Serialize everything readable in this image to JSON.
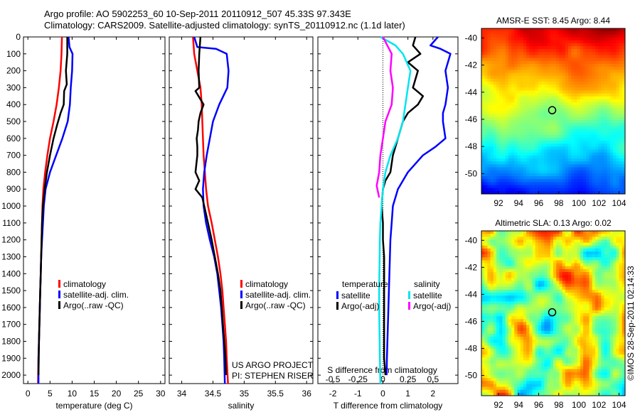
{
  "header": {
    "line1": "Argo profile: AO 5902253_60 10-Sep-2011 20110912_507 45.33S 97.343E",
    "line2": "Climatology: CARS2009. Satellite-adjusted climatology: synTS_20110912.nc (1.1d later)"
  },
  "credit": "US ARGO PROJECT",
  "pi": "PI: STEPHEN RISER",
  "timestamp": "©IMOS 28-Sep-2011 02:14:33",
  "colors": {
    "red": "#ff0000",
    "blue": "#0000ff",
    "black": "#000000",
    "cyan": "#00e5ee",
    "magenta": "#ff00ff"
  },
  "chart_data": [
    {
      "type": "line",
      "xlabel": "temperature (deg C)",
      "ylabel": "",
      "xlim": [
        -1,
        31
      ],
      "ylim": [
        2050,
        0
      ],
      "x_ticks": [
        "0",
        "5",
        "10",
        "15",
        "20",
        "25",
        "30"
      ],
      "y_ticks": [
        "0",
        "100",
        "200",
        "300",
        "400",
        "500",
        "600",
        "700",
        "800",
        "900",
        "1000",
        "1100",
        "1200",
        "1300",
        "1400",
        "1500",
        "1600",
        "1700",
        "1800",
        "1900",
        "2000"
      ],
      "legend": [
        "climatology",
        "satellite-adj. clim.",
        "Argo(..raw -QC)"
      ],
      "series": [
        {
          "name": "climatology",
          "color": "red",
          "points": [
            [
              7.7,
              0
            ],
            [
              7.6,
              100
            ],
            [
              7.4,
              200
            ],
            [
              7.0,
              300
            ],
            [
              6.5,
              400
            ],
            [
              5.8,
              500
            ],
            [
              5.0,
              600
            ],
            [
              4.4,
              700
            ],
            [
              3.9,
              800
            ],
            [
              3.5,
              900
            ],
            [
              3.3,
              1000
            ],
            [
              3.2,
              1100
            ],
            [
              3.1,
              1200
            ],
            [
              3.0,
              1300
            ],
            [
              2.9,
              1400
            ],
            [
              2.8,
              1500
            ],
            [
              2.7,
              1600
            ],
            [
              2.6,
              1700
            ],
            [
              2.5,
              1800
            ],
            [
              2.4,
              1900
            ],
            [
              2.3,
              2050
            ]
          ]
        },
        {
          "name": "satellite-adj. clim.",
          "color": "blue",
          "points": [
            [
              9.2,
              0
            ],
            [
              9.4,
              60
            ],
            [
              10.1,
              100
            ],
            [
              10.0,
              200
            ],
            [
              9.7,
              300
            ],
            [
              9.5,
              400
            ],
            [
              9.0,
              500
            ],
            [
              7.8,
              600
            ],
            [
              6.4,
              700
            ],
            [
              5.0,
              800
            ],
            [
              4.0,
              900
            ],
            [
              3.6,
              1000
            ],
            [
              3.4,
              1100
            ],
            [
              3.2,
              1200
            ],
            [
              3.0,
              1300
            ],
            [
              2.9,
              1400
            ],
            [
              2.8,
              1500
            ],
            [
              2.7,
              1600
            ],
            [
              2.6,
              1700
            ],
            [
              2.5,
              1800
            ],
            [
              2.4,
              1900
            ],
            [
              2.4,
              2050
            ]
          ]
        },
        {
          "name": "Argo(..raw -QC)",
          "color": "black",
          "points": [
            [
              8.9,
              0
            ],
            [
              8.9,
              100
            ],
            [
              8.6,
              200
            ],
            [
              8.8,
              280
            ],
            [
              8.2,
              320
            ],
            [
              8.1,
              400
            ],
            [
              7.4,
              450
            ],
            [
              6.6,
              520
            ],
            [
              5.8,
              600
            ],
            [
              5.0,
              700
            ],
            [
              4.3,
              800
            ],
            [
              3.8,
              900
            ],
            [
              3.4,
              1000
            ],
            [
              3.2,
              1100
            ],
            [
              3.1,
              1200
            ],
            [
              3.0,
              1300
            ],
            [
              2.9,
              1400
            ],
            [
              2.8,
              1500
            ],
            [
              2.7,
              1600
            ],
            [
              2.6,
              1700
            ],
            [
              2.5,
              1800
            ],
            [
              2.45,
              1900
            ],
            [
              2.4,
              2000
            ]
          ]
        }
      ]
    },
    {
      "type": "line",
      "xlabel": "salinity",
      "ylabel": "",
      "xlim": [
        33.8,
        36.1
      ],
      "ylim": [
        2050,
        0
      ],
      "x_ticks": [
        "34",
        "34.5",
        "35",
        "35.5",
        "36"
      ],
      "legend": [
        "climatology",
        "satellite-adj. clim.",
        "Argo(..raw -QC)"
      ],
      "series": [
        {
          "name": "climatology",
          "color": "red",
          "points": [
            [
              34.18,
              0
            ],
            [
              34.2,
              100
            ],
            [
              34.25,
              200
            ],
            [
              34.3,
              300
            ],
            [
              34.32,
              400
            ],
            [
              34.33,
              500
            ],
            [
              34.34,
              600
            ],
            [
              34.35,
              700
            ],
            [
              34.37,
              800
            ],
            [
              34.39,
              900
            ],
            [
              34.42,
              1000
            ],
            [
              34.48,
              1100
            ],
            [
              34.53,
              1200
            ],
            [
              34.58,
              1300
            ],
            [
              34.62,
              1400
            ],
            [
              34.65,
              1500
            ],
            [
              34.67,
              1600
            ],
            [
              34.69,
              1700
            ],
            [
              34.71,
              1800
            ],
            [
              34.72,
              1900
            ],
            [
              34.74,
              2050
            ]
          ]
        },
        {
          "name": "satellite-adj. clim.",
          "color": "blue",
          "points": [
            [
              34.2,
              0
            ],
            [
              34.25,
              60
            ],
            [
              34.55,
              70
            ],
            [
              34.72,
              100
            ],
            [
              34.75,
              200
            ],
            [
              34.73,
              300
            ],
            [
              34.6,
              400
            ],
            [
              34.5,
              500
            ],
            [
              34.45,
              600
            ],
            [
              34.4,
              700
            ],
            [
              34.36,
              800
            ],
            [
              34.34,
              900
            ],
            [
              34.35,
              1000
            ],
            [
              34.39,
              1100
            ],
            [
              34.45,
              1200
            ],
            [
              34.52,
              1300
            ],
            [
              34.57,
              1400
            ],
            [
              34.6,
              1500
            ],
            [
              34.63,
              1600
            ],
            [
              34.65,
              1700
            ],
            [
              34.67,
              1800
            ],
            [
              34.68,
              1900
            ],
            [
              34.69,
              2050
            ]
          ]
        },
        {
          "name": "Argo(..raw -QC)",
          "color": "black",
          "points": [
            [
              34.3,
              0
            ],
            [
              34.28,
              100
            ],
            [
              34.27,
              200
            ],
            [
              34.28,
              300
            ],
            [
              34.22,
              320
            ],
            [
              34.35,
              400
            ],
            [
              34.3,
              450
            ],
            [
              34.27,
              500
            ],
            [
              34.26,
              550
            ],
            [
              34.24,
              600
            ],
            [
              34.25,
              650
            ],
            [
              34.25,
              700
            ],
            [
              34.22,
              800
            ],
            [
              34.28,
              850
            ],
            [
              34.22,
              900
            ],
            [
              34.33,
              950
            ],
            [
              34.36,
              1000
            ],
            [
              34.42,
              1100
            ],
            [
              34.48,
              1200
            ],
            [
              34.53,
              1300
            ],
            [
              34.58,
              1400
            ],
            [
              34.62,
              1500
            ],
            [
              34.64,
              1600
            ],
            [
              34.66,
              1700
            ],
            [
              34.68,
              1800
            ],
            [
              34.7,
              1900
            ],
            [
              34.71,
              2000
            ]
          ]
        }
      ]
    },
    {
      "type": "line",
      "xlabel": "T difference from climatology",
      "ylabel": "",
      "xlim": [
        -2.6,
        3.0
      ],
      "ylim": [
        2050,
        0
      ],
      "x_ticks": [
        "-2",
        "-1",
        "0",
        "1",
        "2"
      ],
      "top_label": "S difference from climatology",
      "top_ticks": [
        "-0.5",
        "-0.25",
        "0",
        "0.25",
        "0.5"
      ],
      "legend_groups": [
        "temperature",
        "salinity"
      ],
      "legend": [
        "satellite",
        "Argo(-adj)",
        "satellite",
        "Argo(-adj)"
      ],
      "series": [
        {
          "name": "satellite",
          "color": "blue",
          "points": [
            [
              2.2,
              0
            ],
            [
              1.9,
              50
            ],
            [
              2.3,
              70
            ],
            [
              2.7,
              100
            ],
            [
              2.6,
              150
            ],
            [
              2.5,
              200
            ],
            [
              2.6,
              300
            ],
            [
              2.5,
              400
            ],
            [
              2.4,
              450
            ],
            [
              2.4,
              500
            ],
            [
              2.5,
              600
            ],
            [
              2.1,
              650
            ],
            [
              1.6,
              700
            ],
            [
              1.0,
              800
            ],
            [
              0.6,
              900
            ],
            [
              0.4,
              1000
            ],
            [
              0.35,
              1100
            ],
            [
              0.3,
              1200
            ],
            [
              0.28,
              1300
            ],
            [
              0.26,
              1400
            ],
            [
              0.24,
              1500
            ],
            [
              0.22,
              1600
            ],
            [
              0.2,
              1700
            ],
            [
              0.18,
              1800
            ],
            [
              0.16,
              1900
            ],
            [
              0.15,
              2000
            ]
          ]
        },
        {
          "name": "Argo(-adj)",
          "color": "black",
          "points": [
            [
              1.3,
              0
            ],
            [
              1.2,
              50
            ],
            [
              1.5,
              100
            ],
            [
              1.0,
              150
            ],
            [
              1.4,
              200
            ],
            [
              1.2,
              300
            ],
            [
              1.6,
              350
            ],
            [
              1.4,
              400
            ],
            [
              1.0,
              450
            ],
            [
              0.8,
              500
            ],
            [
              0.6,
              600
            ],
            [
              0.4,
              700
            ],
            [
              0.3,
              800
            ],
            [
              0.1,
              850
            ],
            [
              0.0,
              900
            ],
            [
              -0.05,
              1000
            ],
            [
              0.0,
              1100
            ],
            [
              0.0,
              1200
            ],
            [
              0.05,
              1300
            ],
            [
              0.05,
              1500
            ],
            [
              0.05,
              1700
            ],
            [
              0.05,
              1900
            ],
            [
              0.1,
              2000
            ]
          ]
        },
        {
          "name": "satellite",
          "color": "cyan",
          "points": [
            [
              -0.1,
              0
            ],
            [
              0.5,
              50
            ],
            [
              0.8,
              100
            ],
            [
              1.1,
              200
            ],
            [
              1.0,
              300
            ],
            [
              0.9,
              400
            ],
            [
              0.8,
              500
            ],
            [
              0.6,
              600
            ],
            [
              0.3,
              700
            ],
            [
              0.1,
              800
            ],
            [
              0.0,
              900
            ],
            [
              -0.05,
              1000
            ],
            [
              -0.1,
              1100
            ],
            [
              -0.12,
              1200
            ],
            [
              -0.13,
              1300
            ],
            [
              -0.14,
              1400
            ],
            [
              -0.15,
              1500
            ],
            [
              -0.15,
              1600
            ],
            [
              -0.14,
              1700
            ],
            [
              -0.13,
              1800
            ],
            [
              -0.12,
              1900
            ],
            [
              -0.1,
              2050
            ]
          ]
        },
        {
          "name": "Argo(-adj)",
          "color": "magenta",
          "points": [
            [
              0.0,
              0
            ],
            [
              0.35,
              100
            ],
            [
              0.3,
              200
            ],
            [
              0.4,
              300
            ],
            [
              0.35,
              400
            ],
            [
              0.1,
              500
            ],
            [
              0.0,
              600
            ],
            [
              -0.1,
              700
            ],
            [
              -0.15,
              800
            ],
            [
              -0.25,
              880
            ],
            [
              -0.15,
              950
            ]
          ]
        }
      ]
    },
    {
      "type": "heatmap",
      "title": "AMSR-E SST: 8.45 Argo: 8.44",
      "x_ticks": [
        "92",
        "94",
        "96",
        "98",
        "100",
        "102",
        "104"
      ],
      "y_ticks": [
        "-40",
        "-42",
        "-44",
        "-46",
        "-48",
        "-50"
      ],
      "xlim": [
        90.3,
        104.6
      ],
      "ylim": [
        -51.5,
        -39.3
      ],
      "marker": [
        97.343,
        -45.33
      ]
    },
    {
      "type": "heatmap",
      "title": "Altimetric SLA: 0.13 Argo: 0.02",
      "x_ticks": [
        "92",
        "94",
        "96",
        "98",
        "100",
        "102",
        "104"
      ],
      "y_ticks": [
        "-40",
        "-42",
        "-44",
        "-46",
        "-48",
        "-50"
      ],
      "xlim": [
        90.3,
        104.6
      ],
      "ylim": [
        -51.5,
        -39.3
      ],
      "marker": [
        97.343,
        -45.33
      ]
    }
  ]
}
